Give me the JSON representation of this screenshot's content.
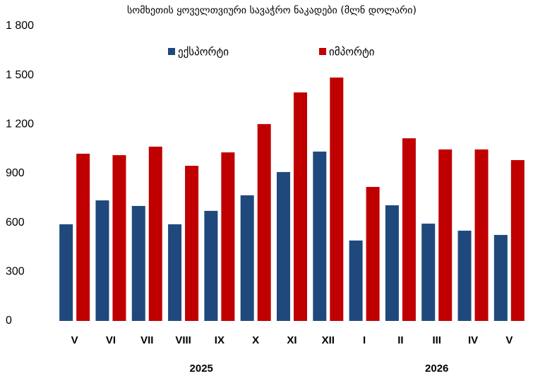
{
  "chart_data": {
    "type": "bar",
    "title": "სომხეთის ყოველთვიური სავაჭრო ნაკადები (მლნ დოლარი)",
    "categories": [
      "V",
      "VI",
      "VII",
      "VIII",
      "IX",
      "X",
      "XI",
      "XII",
      "I",
      "II",
      "III",
      "IV",
      "V"
    ],
    "groups": [
      {
        "label": "2025",
        "span": 8
      },
      {
        "label": "2026",
        "span": 5
      }
    ],
    "series": [
      {
        "name": "ექსპორტი",
        "color": "#1f497d",
        "values": [
          590,
          736,
          702,
          590,
          672,
          767,
          909,
          1034,
          491,
          706,
          594,
          551,
          525
        ]
      },
      {
        "name": "იმპორტი",
        "color": "#c00000",
        "values": [
          1021,
          1012,
          1064,
          947,
          1029,
          1202,
          1395,
          1486,
          818,
          1115,
          1047,
          1047,
          982
        ]
      }
    ],
    "ylim": [
      0,
      1800
    ],
    "yticks": [
      0,
      300,
      600,
      900,
      {
        "value": 1200,
        "label": "1 200"
      },
      {
        "value": 1500,
        "label": "1 500"
      },
      {
        "value": 1800,
        "label": "1 800"
      }
    ],
    "grid": false,
    "legend": "top"
  }
}
